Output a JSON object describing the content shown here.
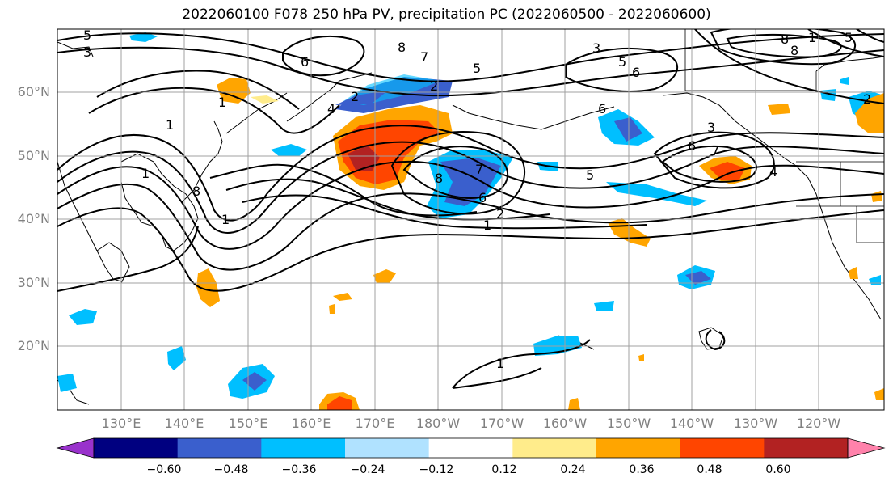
{
  "title": "2022060100 F078 250 hPa PV, precipitation PC (2022060500 - 2022060600)",
  "latitude_labels": [
    "60°N",
    "50°N",
    "40°N",
    "30°N",
    "20°N"
  ],
  "longitude_labels": [
    "130°E",
    "140°E",
    "150°E",
    "160°E",
    "170°E",
    "180°W",
    "170°W",
    "160°W",
    "150°W",
    "140°W",
    "130°W",
    "120°W"
  ],
  "colorbar": {
    "tick_labels": [
      "−0.60",
      "−0.48",
      "−0.36",
      "−0.24",
      "−0.12",
      "0.12",
      "0.24",
      "0.36",
      "0.48",
      "0.60"
    ],
    "colors": [
      "#9932cc",
      "#000080",
      "#3a5fcd",
      "#00bfff",
      "#b0e2ff",
      "#ffffff",
      "#ffec8b",
      "#ffa500",
      "#ff4500",
      "#b22222",
      "#ff82ab"
    ]
  },
  "fill_colors": {
    "ocean": "#ffffff",
    "coastline": "#000000",
    "grid": "#a0a0a0",
    "contour": "#000000"
  },
  "contour_labels": [
    "5",
    "3",
    "6",
    "8",
    "7",
    "5",
    "3",
    "5",
    "6",
    "8",
    "1",
    "5",
    "2",
    "8",
    "1",
    "4",
    "2",
    "8",
    "7",
    "3",
    "6",
    "7",
    "1",
    "1",
    "2",
    "6",
    "5",
    "8",
    "6",
    "1",
    "4",
    "2",
    "1",
    "1"
  ]
}
